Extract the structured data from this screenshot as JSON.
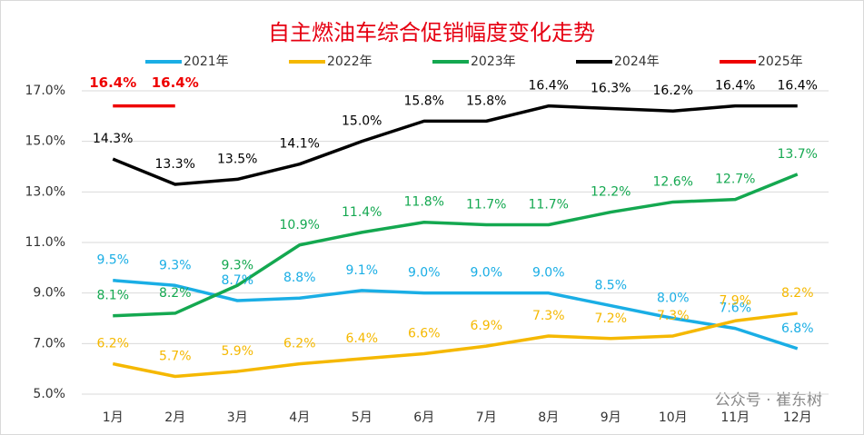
{
  "chart_data": {
    "type": "line",
    "title": "自主燃油车综合促销幅度变化走势",
    "categories": [
      "1月",
      "2月",
      "3月",
      "4月",
      "5月",
      "6月",
      "7月",
      "8月",
      "9月",
      "10月",
      "11月",
      "12月"
    ],
    "series": [
      {
        "name": "2021年",
        "color": "#1aaee5",
        "values": [
          9.5,
          9.3,
          8.7,
          8.8,
          9.1,
          9.0,
          9.0,
          9.0,
          8.5,
          8.0,
          7.6,
          6.8
        ],
        "value_labels": [
          "9.5%",
          "9.3%",
          "8.7%",
          "8.8%",
          "9.1%",
          "9.0%",
          "9.0%",
          "9.0%",
          "8.5%",
          "8.0%",
          "7.6%",
          "6.8%"
        ]
      },
      {
        "name": "2022年",
        "color": "#f5b800",
        "values": [
          6.2,
          5.7,
          5.9,
          6.2,
          6.4,
          6.6,
          6.9,
          7.3,
          7.2,
          7.3,
          7.9,
          8.2
        ],
        "value_labels": [
          "6.2%",
          "5.7%",
          "5.9%",
          "6.2%",
          "6.4%",
          "6.6%",
          "6.9%",
          "7.3%",
          "7.2%",
          "7.3%",
          "7.9%",
          "8.2%"
        ]
      },
      {
        "name": "2023年",
        "color": "#14a850",
        "values": [
          8.1,
          8.2,
          9.3,
          10.9,
          11.4,
          11.8,
          11.7,
          11.7,
          12.2,
          12.6,
          12.7,
          13.7
        ],
        "value_labels": [
          "8.1%",
          "8.2%",
          "9.3%",
          "10.9%",
          "11.4%",
          "11.8%",
          "11.7%",
          "11.7%",
          "12.2%",
          "12.6%",
          "12.7%",
          "13.7%"
        ]
      },
      {
        "name": "2024年",
        "color": "#000000",
        "values": [
          14.3,
          13.3,
          13.5,
          14.1,
          15.0,
          15.8,
          15.8,
          16.4,
          16.3,
          16.2,
          16.4,
          16.4
        ],
        "value_labels": [
          "14.3%",
          "13.3%",
          "13.5%",
          "14.1%",
          "15.0%",
          "15.8%",
          "15.8%",
          "16.4%",
          "16.3%",
          "16.2%",
          "16.4%",
          "16.4%"
        ]
      },
      {
        "name": "2025年",
        "color": "#ee0000",
        "values": [
          16.4,
          16.4,
          null,
          null,
          null,
          null,
          null,
          null,
          null,
          null,
          null,
          null
        ],
        "value_labels": [
          "16.4%",
          "16.4%",
          null,
          null,
          null,
          null,
          null,
          null,
          null,
          null,
          null,
          null
        ]
      }
    ],
    "ylim": [
      5,
      17.8
    ],
    "yticks": [
      {
        "value": 5,
        "label": "5.0%"
      },
      {
        "value": 7,
        "label": "7.0%"
      },
      {
        "value": 9,
        "label": "9.0%"
      },
      {
        "value": 11,
        "label": "11.0%"
      },
      {
        "value": 13,
        "label": "13.0%"
      },
      {
        "value": 15,
        "label": "15.0%"
      },
      {
        "value": 17,
        "label": "17.0%"
      }
    ],
    "grid": true,
    "legend": "top",
    "annotations": [
      "公众号 · 崔东树"
    ]
  }
}
